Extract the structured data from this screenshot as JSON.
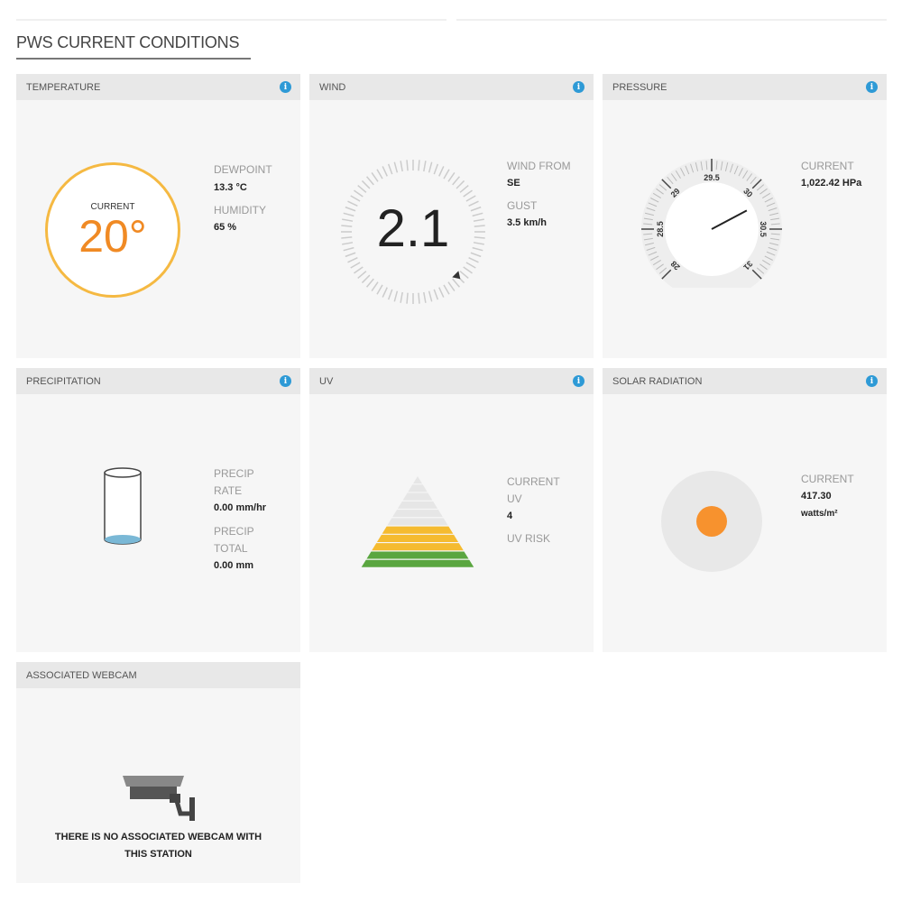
{
  "page_title": "PWS CURRENT CONDITIONS",
  "info_icon": "i",
  "accent_color": "#2e9ad6",
  "temperature": {
    "header": "TEMPERATURE",
    "current_label": "CURRENT",
    "value": "20°",
    "dewpoint_label": "DEWPOINT",
    "dewpoint": "13.3 °C",
    "humidity_label": "HUMIDITY",
    "humidity": "65 %",
    "ring_color": "#f5b942",
    "value_color": "#f08a24"
  },
  "wind": {
    "header": "WIND",
    "speed": "2.1",
    "from_label": "WIND FROM",
    "from": "SE",
    "gust_label": "GUST",
    "gust": "3.5 km/h"
  },
  "pressure": {
    "header": "PRESSURE",
    "current_label": "CURRENT",
    "value": "1,022.42 HPa",
    "gauge_ticks": [
      "28",
      "28.5",
      "29",
      "29.5",
      "30",
      "30.5",
      "31"
    ],
    "gauge_min": 28,
    "gauge_max": 31,
    "needle_value": 30.19
  },
  "precipitation": {
    "header": "PRECIPITATION",
    "rate_label_1": "PRECIP",
    "rate_label_2": "RATE",
    "rate": "0.00 mm/hr",
    "total_label_1": "PRECIP",
    "total_label_2": "TOTAL",
    "total": "0.00 mm"
  },
  "uv": {
    "header": "UV",
    "current_label_1": "CURRENT",
    "current_label_2": "UV",
    "value": "4",
    "risk_label": "UV RISK",
    "stripes_total": 11,
    "stripes_green": 2,
    "stripes_yellow": 3
  },
  "solar": {
    "header": "SOLAR RADIATION",
    "current_label": "CURRENT",
    "value": "417.30",
    "unit": "watts/m²",
    "dot_color": "#f7922e"
  },
  "webcam": {
    "header": "ASSOCIATED WEBCAM",
    "message_1": "THERE IS NO ASSOCIATED WEBCAM WITH",
    "message_2": "THIS STATION"
  }
}
